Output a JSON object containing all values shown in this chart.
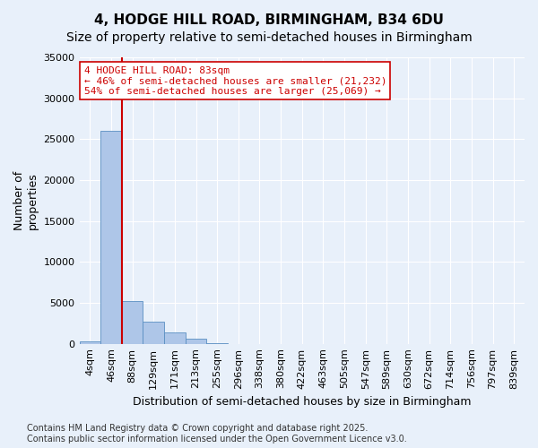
{
  "title": "4, HODGE HILL ROAD, BIRMINGHAM, B34 6DU",
  "subtitle": "Size of property relative to semi-detached houses in Birmingham",
  "xlabel": "Distribution of semi-detached houses by size in Birmingham",
  "ylabel": "Number of\nproperties",
  "bin_labels": [
    "4sqm",
    "46sqm",
    "88sqm",
    "129sqm",
    "171sqm",
    "213sqm",
    "255sqm",
    "296sqm",
    "338sqm",
    "380sqm",
    "422sqm",
    "463sqm",
    "505sqm",
    "547sqm",
    "589sqm",
    "630sqm",
    "672sqm",
    "714sqm",
    "756sqm",
    "797sqm",
    "839sqm"
  ],
  "bar_values": [
    300,
    26000,
    5200,
    2700,
    1400,
    600,
    60,
    10,
    5,
    2,
    1,
    0,
    0,
    0,
    0,
    0,
    0,
    0,
    0,
    0,
    0
  ],
  "bar_color": "#aec6e8",
  "bar_edge_color": "#5a8fc2",
  "property_size_bin": 2,
  "annotation_text": "4 HODGE HILL ROAD: 83sqm\n← 46% of semi-detached houses are smaller (21,232)\n54% of semi-detached houses are larger (25,069) →",
  "annotation_box_color": "#ffffff",
  "annotation_box_edge_color": "#cc0000",
  "annotation_text_color": "#cc0000",
  "vline_color": "#cc0000",
  "background_color": "#e8f0fa",
  "plot_bg_color": "#e8f0fa",
  "footer_text": "Contains HM Land Registry data © Crown copyright and database right 2025.\nContains public sector information licensed under the Open Government Licence v3.0.",
  "ylim": [
    0,
    35000
  ],
  "yticks": [
    0,
    5000,
    10000,
    15000,
    20000,
    25000,
    30000,
    35000
  ],
  "title_fontsize": 11,
  "subtitle_fontsize": 10,
  "axis_label_fontsize": 9,
  "tick_fontsize": 8,
  "footer_fontsize": 7,
  "annotation_fontsize": 8
}
